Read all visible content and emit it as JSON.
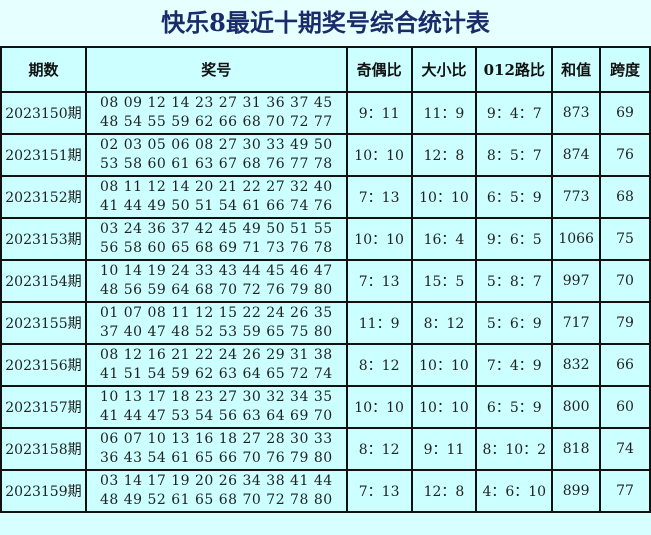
{
  "title": "快乐8最近十期奖号综合统计表",
  "headers": [
    "期数",
    "奖号",
    "奇偶比",
    "大小比",
    "012路比",
    "和值",
    "跨度"
  ],
  "rows": [
    {
      "period": "2023150期",
      "line1": "08 09 12 14 23 27 31 36 37 45",
      "line2": "48 54 55 59 62 66 68 70 72 77",
      "odd_even": "9：11",
      "big_small": "11：9",
      "route012": "9：4：7",
      "sum": "873",
      "span": "69"
    },
    {
      "period": "2023151期",
      "line1": "02 03 05 06 08 27 30 33 49 50",
      "line2": "53 58 60 61 63 67 68 76 77 78",
      "odd_even": "10：10",
      "big_small": "12：8",
      "route012": "8：5：7",
      "sum": "874",
      "span": "76"
    },
    {
      "period": "2023152期",
      "line1": "08 11 12 14 20 21 22 27 32 40",
      "line2": "41 44 49 50 51 54 61 66 74 76",
      "odd_even": "7：13",
      "big_small": "10：10",
      "route012": "6：5：9",
      "sum": "773",
      "span": "68"
    },
    {
      "period": "2023153期",
      "line1": "03 24 36 37 42 45 49 50 51 55",
      "line2": "56 58 60 65 68 69 71 73 76 78",
      "odd_even": "10：10",
      "big_small": "16：4",
      "route012": "9：6：5",
      "sum": "1066",
      "span": "75"
    },
    {
      "period": "2023154期",
      "line1": "10 14 19 24 33 43 44 45 46 47",
      "line2": "48 56 59 64 68 70 72 76 79 80",
      "odd_even": "7：13",
      "big_small": "15：5",
      "route012": "5：8：7",
      "sum": "997",
      "span": "70"
    },
    {
      "period": "2023155期",
      "line1": "01 07 08 11 12 15 22 24 26 35",
      "line2": "37 40 47 48 52 53 59 65 75 80",
      "odd_even": "11：9",
      "big_small": "8：12",
      "route012": "5：6：9",
      "sum": "717",
      "span": "79"
    },
    {
      "period": "2023156期",
      "line1": "08 12 16 21 22 24 26 29 31 38",
      "line2": "41 51 54 59 62 63 64 65 72 74",
      "odd_even": "8：12",
      "big_small": "10：10",
      "route012": "7：4：9",
      "sum": "832",
      "span": "66"
    },
    {
      "period": "2023157期",
      "line1": "10 13 17 18 23 27 30 32 34 35",
      "line2": "41 44 47 53 54 56 63 64 69 70",
      "odd_even": "10：10",
      "big_small": "10：10",
      "route012": "6：5：9",
      "sum": "800",
      "span": "60"
    },
    {
      "period": "2023158期",
      "line1": "06 07 10 13 16 18 27 28 30 33",
      "line2": "36 43 54 61 65 66 70 76 79 80",
      "odd_even": "8：12",
      "big_small": "9：11",
      "route012": "8：10：2",
      "sum": "818",
      "span": "74"
    },
    {
      "period": "2023159期",
      "line1": "03 14 17 19 20 26 34 38 41 44",
      "line2": "48 49 52 61 65 68 70 72 78 80",
      "odd_even": "7：13",
      "big_small": "12：8",
      "route012": "4：6：10",
      "sum": "899",
      "span": "77"
    }
  ]
}
